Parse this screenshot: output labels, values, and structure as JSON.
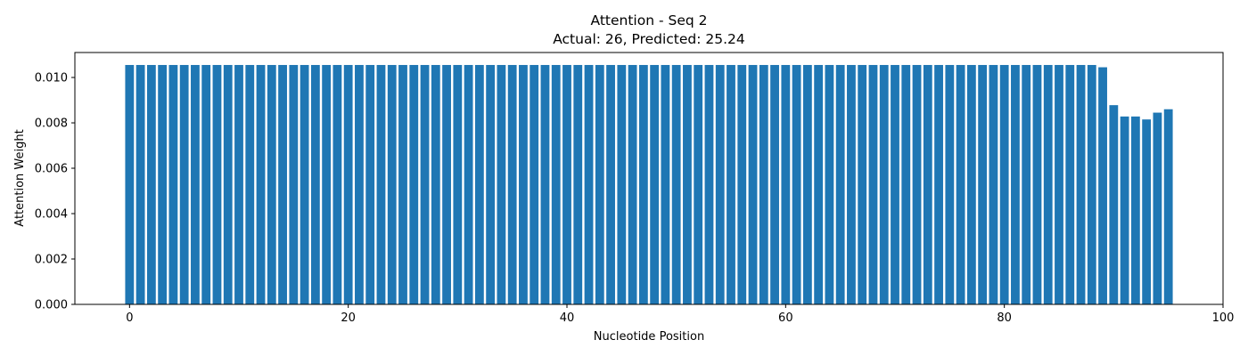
{
  "chart_data": {
    "type": "bar",
    "title": "Attention - Seq 2",
    "subtitle": "Actual: 26, Predicted: 25.24",
    "xlabel": "Nucleotide Position",
    "ylabel": "Attention Weight",
    "xlim": [
      -5,
      100
    ],
    "ylim": [
      0,
      0.0111
    ],
    "x_ticks": [
      0,
      20,
      40,
      60,
      80,
      100
    ],
    "y_ticks": [
      0.0,
      0.002,
      0.004,
      0.006,
      0.008,
      0.01
    ],
    "x_tick_labels": [
      "0",
      "20",
      "40",
      "60",
      "80",
      "100"
    ],
    "y_tick_labels": [
      "0.000",
      "0.002",
      "0.004",
      "0.006",
      "0.008",
      "0.010"
    ],
    "grid": false,
    "bar_color": "#1f77b4",
    "x": [
      0,
      1,
      2,
      3,
      4,
      5,
      6,
      7,
      8,
      9,
      10,
      11,
      12,
      13,
      14,
      15,
      16,
      17,
      18,
      19,
      20,
      21,
      22,
      23,
      24,
      25,
      26,
      27,
      28,
      29,
      30,
      31,
      32,
      33,
      34,
      35,
      36,
      37,
      38,
      39,
      40,
      41,
      42,
      43,
      44,
      45,
      46,
      47,
      48,
      49,
      50,
      51,
      52,
      53,
      54,
      55,
      56,
      57,
      58,
      59,
      60,
      61,
      62,
      63,
      64,
      65,
      66,
      67,
      68,
      69,
      70,
      71,
      72,
      73,
      74,
      75,
      76,
      77,
      78,
      79,
      80,
      81,
      82,
      83,
      84,
      85,
      86,
      87,
      88,
      89,
      90,
      91,
      92,
      93,
      94,
      95
    ],
    "values": [
      0.01055,
      0.01055,
      0.01055,
      0.01055,
      0.01055,
      0.01055,
      0.01055,
      0.01055,
      0.01055,
      0.01055,
      0.01055,
      0.01055,
      0.01055,
      0.01055,
      0.01055,
      0.01055,
      0.01055,
      0.01055,
      0.01055,
      0.01055,
      0.01055,
      0.01055,
      0.01055,
      0.01055,
      0.01055,
      0.01055,
      0.01055,
      0.01055,
      0.01055,
      0.01055,
      0.01055,
      0.01055,
      0.01055,
      0.01055,
      0.01055,
      0.01055,
      0.01055,
      0.01055,
      0.01055,
      0.01055,
      0.01055,
      0.01055,
      0.01055,
      0.01055,
      0.01055,
      0.01055,
      0.01055,
      0.01055,
      0.01055,
      0.01055,
      0.01055,
      0.01055,
      0.01055,
      0.01055,
      0.01055,
      0.01055,
      0.01055,
      0.01055,
      0.01055,
      0.01055,
      0.01055,
      0.01055,
      0.01055,
      0.01055,
      0.01055,
      0.01055,
      0.01055,
      0.01055,
      0.01055,
      0.01055,
      0.01055,
      0.01055,
      0.01055,
      0.01055,
      0.01055,
      0.01055,
      0.01055,
      0.01055,
      0.01055,
      0.01055,
      0.01055,
      0.01055,
      0.01055,
      0.01055,
      0.01055,
      0.01055,
      0.01055,
      0.01055,
      0.01055,
      0.01045,
      0.00878,
      0.00828,
      0.00828,
      0.00815,
      0.00845,
      0.0086
    ]
  }
}
